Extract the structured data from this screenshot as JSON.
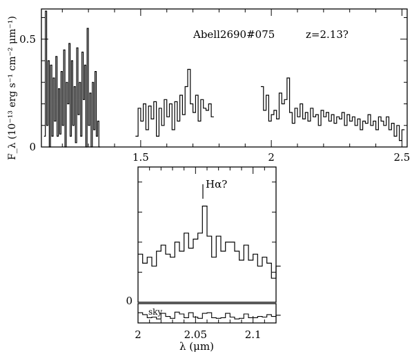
{
  "chart_data": [
    {
      "type": "line",
      "panel": "full-spectrum",
      "annotation": "Abell2690#075",
      "redshift_label": "z=2.13?",
      "ylabel": "F_λ (10⁻¹³ erg s⁻¹ cm⁻² μm⁻¹)",
      "xlabel": "",
      "xlim": [
        1.12,
        2.52
      ],
      "ylim": [
        0,
        0.64
      ],
      "xticks": [
        1.5,
        2,
        2.5
      ],
      "yticks": [
        0,
        0.5
      ],
      "segments": [
        {
          "x": [
            1.13,
            1.135,
            1.14,
            1.145,
            1.15,
            1.155,
            1.16,
            1.165,
            1.17,
            1.175,
            1.18,
            1.185,
            1.19,
            1.195,
            1.2,
            1.205,
            1.21,
            1.215,
            1.22,
            1.225,
            1.23,
            1.235,
            1.24,
            1.245,
            1.25,
            1.255,
            1.26,
            1.265,
            1.27,
            1.275,
            1.28,
            1.285,
            1.29,
            1.295,
            1.3,
            1.305,
            1.31,
            1.315,
            1.32,
            1.325,
            1.33,
            1.335,
            1.34
          ],
          "y": [
            0.05,
            0.63,
            0.1,
            0.4,
            0.0,
            0.38,
            0.05,
            0.32,
            0.12,
            0.42,
            0.05,
            0.27,
            0.06,
            0.35,
            0.1,
            0.45,
            0.0,
            0.3,
            0.2,
            0.48,
            0.05,
            0.4,
            0.1,
            0.28,
            0.02,
            0.46,
            0.15,
            0.3,
            0.05,
            0.44,
            0.22,
            0.38,
            0.0,
            0.55,
            0.1,
            0.25,
            0.0,
            0.3,
            0.08,
            0.35,
            0.05,
            0.12,
            0.0
          ]
        },
        {
          "x": [
            1.48,
            1.49,
            1.5,
            1.51,
            1.52,
            1.53,
            1.54,
            1.55,
            1.56,
            1.57,
            1.58,
            1.59,
            1.6,
            1.61,
            1.62,
            1.63,
            1.64,
            1.65,
            1.66,
            1.67,
            1.68,
            1.69,
            1.7,
            1.71,
            1.72,
            1.73,
            1.74,
            1.75,
            1.76,
            1.77
          ],
          "y": [
            0.05,
            0.18,
            0.12,
            0.2,
            0.08,
            0.19,
            0.13,
            0.21,
            0.05,
            0.18,
            0.1,
            0.22,
            0.14,
            0.2,
            0.08,
            0.21,
            0.12,
            0.24,
            0.15,
            0.28,
            0.36,
            0.2,
            0.16,
            0.24,
            0.12,
            0.22,
            0.18,
            0.17,
            0.2,
            0.14
          ]
        },
        {
          "x": [
            1.96,
            1.97,
            1.98,
            1.99,
            2.0,
            2.01,
            2.02,
            2.03,
            2.04,
            2.05,
            2.06,
            2.07,
            2.08,
            2.09,
            2.1,
            2.11,
            2.12,
            2.13,
            2.14,
            2.15,
            2.16,
            2.17,
            2.18,
            2.19,
            2.2,
            2.21,
            2.22,
            2.23,
            2.24,
            2.25,
            2.26,
            2.27,
            2.28,
            2.29,
            2.3,
            2.31,
            2.32,
            2.33,
            2.34,
            2.35,
            2.36,
            2.37,
            2.38,
            2.39,
            2.4,
            2.41,
            2.42,
            2.43,
            2.44,
            2.45,
            2.46,
            2.47,
            2.48,
            2.49,
            2.5
          ],
          "y": [
            0.28,
            0.17,
            0.24,
            0.12,
            0.15,
            0.17,
            0.13,
            0.25,
            0.2,
            0.22,
            0.32,
            0.16,
            0.11,
            0.18,
            0.14,
            0.2,
            0.13,
            0.16,
            0.12,
            0.18,
            0.14,
            0.15,
            0.1,
            0.17,
            0.14,
            0.16,
            0.12,
            0.15,
            0.11,
            0.14,
            0.13,
            0.16,
            0.1,
            0.15,
            0.12,
            0.14,
            0.1,
            0.13,
            0.08,
            0.12,
            0.11,
            0.15,
            0.1,
            0.12,
            0.08,
            0.14,
            0.12,
            0.1,
            0.14,
            0.08,
            0.11,
            0.05,
            0.1,
            0.03,
            0.08
          ]
        }
      ]
    },
    {
      "type": "line",
      "panel": "zoom",
      "line_label": "Hα?",
      "line_marker_x": 2.058,
      "xlabel": "λ (μm)",
      "xlim": [
        2.0,
        2.12
      ],
      "ylim": [
        0,
        0.45
      ],
      "xticks": [
        2,
        2.05,
        2.1
      ],
      "yticks": [
        0
      ],
      "x": [
        2.0,
        2.004,
        2.008,
        2.012,
        2.016,
        2.02,
        2.024,
        2.028,
        2.032,
        2.036,
        2.04,
        2.044,
        2.048,
        2.052,
        2.056,
        2.06,
        2.064,
        2.068,
        2.072,
        2.076,
        2.08,
        2.084,
        2.088,
        2.092,
        2.096,
        2.1,
        2.104,
        2.108,
        2.112,
        2.116,
        2.12
      ],
      "y": [
        0.16,
        0.13,
        0.15,
        0.12,
        0.17,
        0.19,
        0.16,
        0.15,
        0.2,
        0.17,
        0.23,
        0.18,
        0.21,
        0.23,
        0.32,
        0.22,
        0.15,
        0.22,
        0.17,
        0.2,
        0.2,
        0.17,
        0.14,
        0.19,
        0.14,
        0.16,
        0.12,
        0.15,
        0.13,
        0.08,
        0.12
      ]
    },
    {
      "type": "line",
      "panel": "sky",
      "label": "sky",
      "xlim": [
        2.0,
        2.12
      ],
      "x": [
        2.0,
        2.004,
        2.008,
        2.012,
        2.016,
        2.02,
        2.024,
        2.028,
        2.032,
        2.036,
        2.04,
        2.044,
        2.048,
        2.052,
        2.056,
        2.06,
        2.064,
        2.068,
        2.072,
        2.076,
        2.08,
        2.084,
        2.088,
        2.092,
        2.096,
        2.1,
        2.104,
        2.108,
        2.112,
        2.116,
        2.12
      ],
      "y": [
        0.6,
        0.45,
        0.2,
        0.25,
        0.1,
        0.55,
        0.3,
        0.15,
        0.65,
        0.5,
        0.2,
        0.6,
        0.25,
        0.15,
        0.55,
        0.6,
        0.2,
        0.15,
        0.2,
        0.55,
        0.25,
        0.1,
        0.15,
        0.5,
        0.2,
        0.2,
        0.3,
        0.25,
        0.45,
        0.3,
        0.4
      ]
    }
  ]
}
